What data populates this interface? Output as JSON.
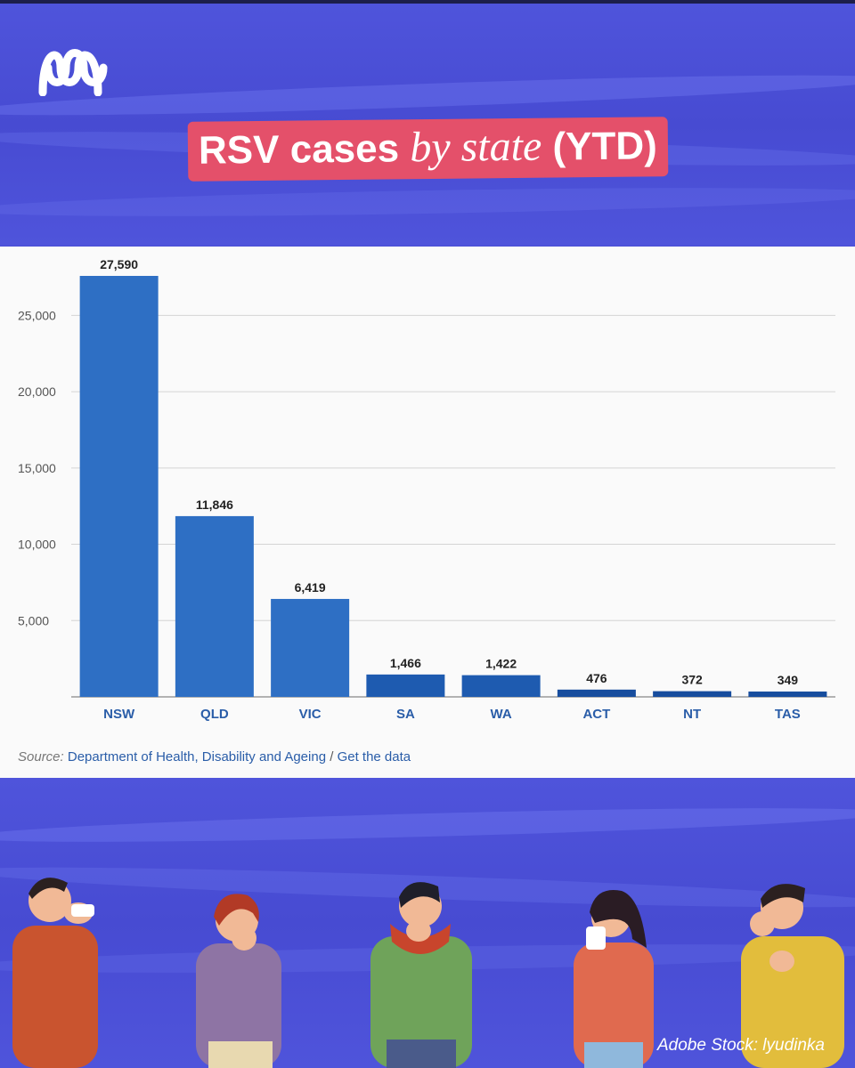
{
  "header": {
    "logo_icon": "abc-logo-icon",
    "title_part1": "RSV cases",
    "title_part2": "by state",
    "title_part3": "(YTD)"
  },
  "chart_data": {
    "type": "bar",
    "title": "RSV cases by state (YTD)",
    "categories": [
      "NSW",
      "QLD",
      "VIC",
      "SA",
      "WA",
      "ACT",
      "NT",
      "TAS"
    ],
    "values": [
      27590,
      11846,
      6419,
      1466,
      1422,
      476,
      372,
      349
    ],
    "value_labels": [
      "27,590",
      "11,846",
      "6,419",
      "1,466",
      "1,422",
      "476",
      "372",
      "349"
    ],
    "ylim": [
      0,
      27590
    ],
    "yticks": [
      5000,
      10000,
      15000,
      20000,
      25000
    ],
    "ytick_labels": [
      "5,000",
      "10,000",
      "15,000",
      "20,000",
      "25,000"
    ],
    "grid": true,
    "bar_colors": [
      "#2e6fc4",
      "#2e6fc4",
      "#2e6fc4",
      "#1e5bb0",
      "#1e5bb0",
      "#174d9e",
      "#174d9e",
      "#174d9e"
    ]
  },
  "source": {
    "label": "Source:",
    "text": "Department of Health, Disability and Ageing",
    "separator": "/",
    "link": "Get the data"
  },
  "credit": "Adobe Stock: lyudinka"
}
